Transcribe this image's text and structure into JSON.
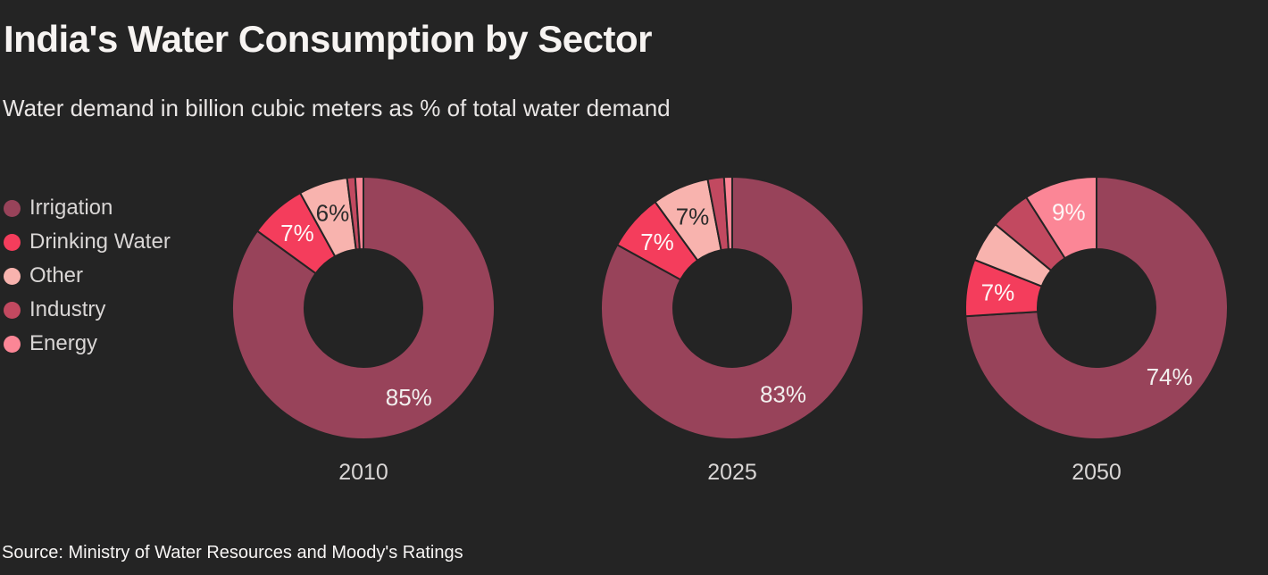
{
  "page": {
    "background_color": "#242424"
  },
  "chart_data": {
    "type": "pie",
    "variant": "donut",
    "title": "India's Water Consumption by Sector",
    "subtitle": "Water demand in billion cubic meters as % of total water demand",
    "source": "Source: Ministry of Water Resources and Moody's Ratings",
    "legend_position": "left",
    "series_names": [
      "Irrigation",
      "Drinking Water",
      "Other",
      "Industry",
      "Energy"
    ],
    "series_colors": [
      "#98435a",
      "#f43d5c",
      "#f8b3ae",
      "#c24960",
      "#fb8696"
    ],
    "slice_label_colors": [
      "#f2efee",
      "#fdf7f7",
      "#2b2b2b",
      "#fdf7f7",
      "#fdf7f7"
    ],
    "charts": [
      {
        "year": "2010",
        "values": [
          85,
          7,
          6,
          1,
          1
        ],
        "slice_labels": [
          "85%",
          "7%",
          "6%",
          "",
          ""
        ]
      },
      {
        "year": "2025",
        "values": [
          83,
          7,
          7,
          2,
          1
        ],
        "slice_labels": [
          "83%",
          "7%",
          "7%",
          "",
          ""
        ]
      },
      {
        "year": "2050",
        "values": [
          74,
          7,
          5,
          5,
          9
        ],
        "slice_labels": [
          "74%",
          "7%",
          "",
          "",
          "9%"
        ]
      }
    ]
  }
}
